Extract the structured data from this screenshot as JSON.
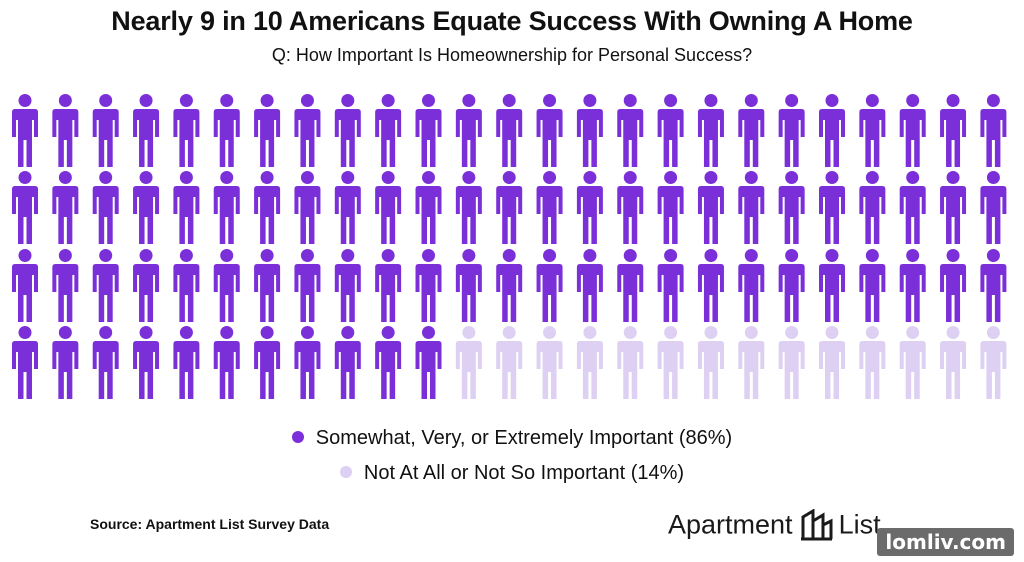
{
  "title": "Nearly 9 in 10 Americans Equate Success With Owning A Home",
  "subtitle": "Q: How Important Is Homeownership for Personal Success?",
  "chart_data": {
    "type": "pictogram",
    "total_icons": 100,
    "rows": 4,
    "columns": 25,
    "fill_order": "row-major",
    "series": [
      {
        "name": "Somewhat, Very, or Extremely Important (86%)",
        "value": 86,
        "color": "#7b2fd8"
      },
      {
        "name": "Not At All or Not So Important (14%)",
        "value": 14,
        "color": "#ddd0f2"
      }
    ]
  },
  "source": "Source: Apartment List Survey Data",
  "brand": {
    "word1": "Apartment",
    "word2": "List",
    "icon": "apartment-list-logo-icon"
  },
  "watermark": "lomliv.com"
}
